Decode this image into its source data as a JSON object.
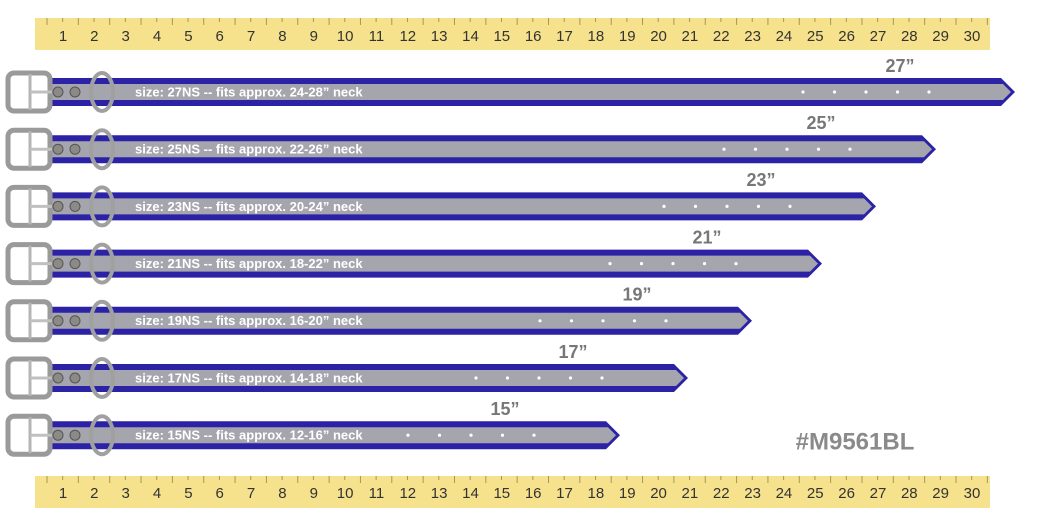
{
  "ruler": {
    "labels": [
      1,
      2,
      3,
      4,
      5,
      6,
      7,
      8,
      9,
      10,
      11,
      12,
      13,
      14,
      15,
      16,
      17,
      18,
      19,
      20,
      21,
      22,
      23,
      24,
      25,
      26,
      27,
      28,
      29,
      30
    ]
  },
  "collars": [
    {
      "size": "size: 27NS -- fits approx. 24-28” neck",
      "length": "27”"
    },
    {
      "size": "size: 25NS -- fits approx. 22-26” neck",
      "length": "25”"
    },
    {
      "size": "size: 23NS -- fits approx. 20-24” neck",
      "length": "23”"
    },
    {
      "size": "size: 21NS -- fits approx. 18-22” neck",
      "length": "21”"
    },
    {
      "size": "size: 19NS -- fits approx. 16-20” neck",
      "length": "19”"
    },
    {
      "size": "size: 17NS -- fits approx. 14-18” neck",
      "length": "17”"
    },
    {
      "size": "size: 15NS -- fits approx. 12-16” neck",
      "length": "15”"
    }
  ],
  "product_code": "#M9561BL"
}
